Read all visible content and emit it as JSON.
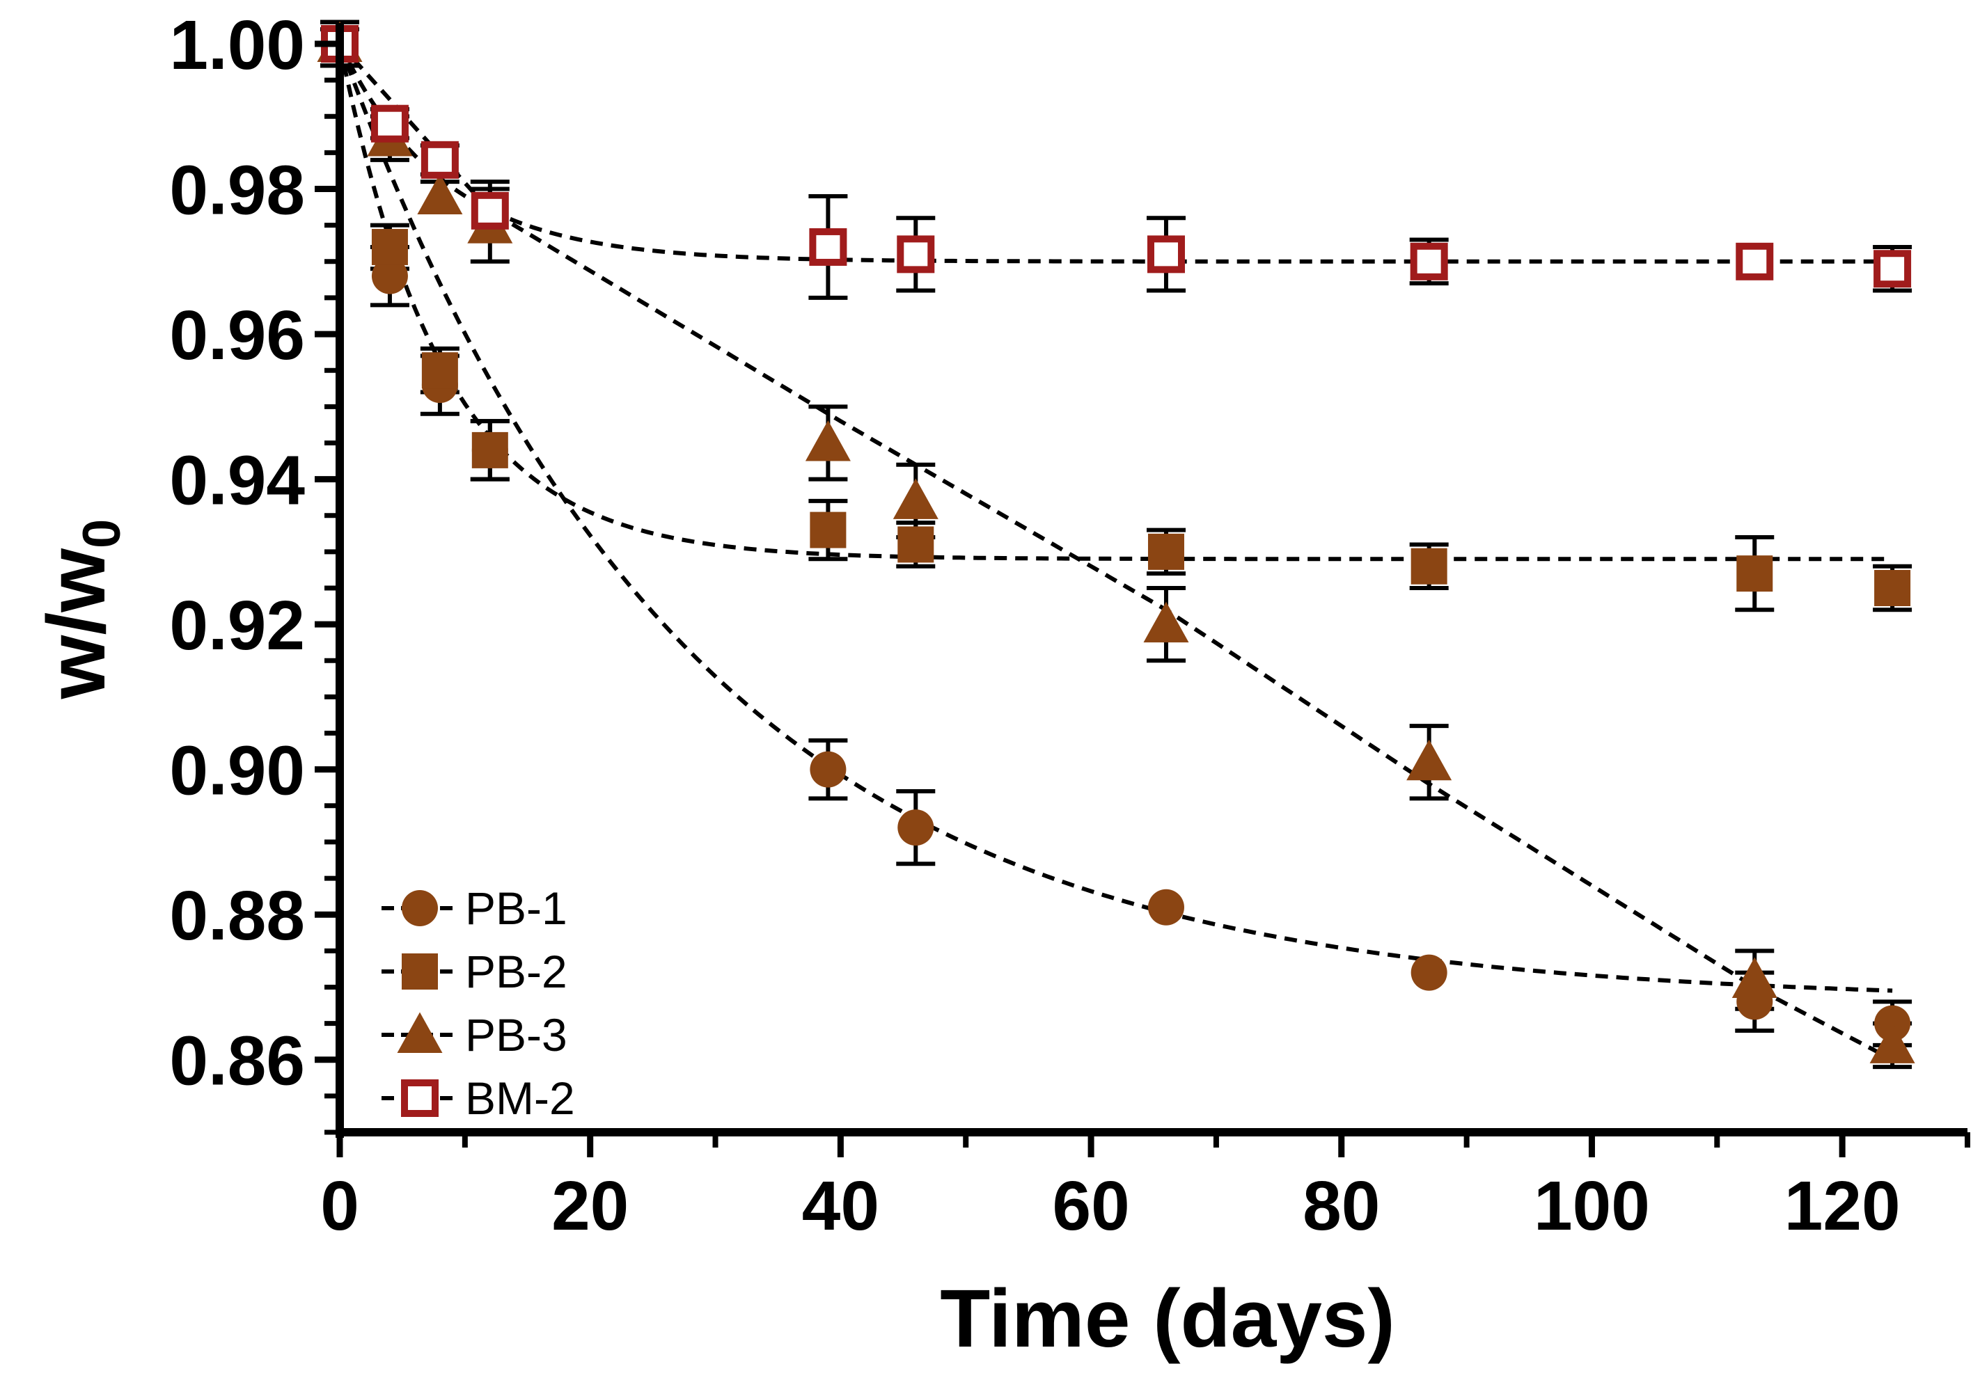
{
  "chart_data": {
    "type": "scatter",
    "xlabel": "Time (days)",
    "ylabel_main": "w/w",
    "ylabel_sub": "0",
    "xlim": [
      0,
      130
    ],
    "ylim": [
      0.85,
      1.0
    ],
    "xticks": [
      0,
      20,
      40,
      60,
      80,
      100,
      120
    ],
    "xtick_labels": [
      "0",
      "20",
      "40",
      "60",
      "80",
      "100",
      "120"
    ],
    "yticks": [
      0.86,
      0.88,
      0.9,
      0.92,
      0.94,
      0.96,
      0.98,
      1.0
    ],
    "ytick_labels": [
      "0.86",
      "0.88",
      "0.90",
      "0.92",
      "0.94",
      "0.96",
      "0.98",
      "1.00"
    ],
    "legend_position": "bottom-left",
    "fit_style": "dashed",
    "series": [
      {
        "name": "PB-1",
        "marker": "circle",
        "filled": true,
        "color": "#8B4513",
        "points": [
          {
            "x": 0,
            "y": 1.0,
            "err": 0.003
          },
          {
            "x": 4,
            "y": 0.968,
            "err": 0.004
          },
          {
            "x": 8,
            "y": 0.953,
            "err": 0.004
          },
          {
            "x": 12,
            "y": 0.944,
            "err": 0.004
          },
          {
            "x": 39,
            "y": 0.9,
            "err": 0.004
          },
          {
            "x": 46,
            "y": 0.892,
            "err": 0.005
          },
          {
            "x": 66,
            "y": 0.881,
            "err": 0
          },
          {
            "x": 87,
            "y": 0.872,
            "err": 0
          },
          {
            "x": 113,
            "y": 0.868,
            "err": 0.004
          },
          {
            "x": 124,
            "y": 0.865,
            "err": 0.003
          }
        ],
        "fit": {
          "model": "exponential",
          "a": 0.868,
          "b": 0.132,
          "k": 0.036
        }
      },
      {
        "name": "PB-2",
        "marker": "square",
        "filled": true,
        "color": "#8B4513",
        "points": [
          {
            "x": 0,
            "y": 1.0,
            "err": 0.003
          },
          {
            "x": 4,
            "y": 0.972,
            "err": 0.003
          },
          {
            "x": 8,
            "y": 0.955,
            "err": 0.003
          },
          {
            "x": 12,
            "y": 0.944,
            "err": 0.004
          },
          {
            "x": 39,
            "y": 0.933,
            "err": 0.004
          },
          {
            "x": 46,
            "y": 0.931,
            "err": 0.003
          },
          {
            "x": 66,
            "y": 0.93,
            "err": 0.003
          },
          {
            "x": 87,
            "y": 0.928,
            "err": 0.003
          },
          {
            "x": 113,
            "y": 0.927,
            "err": 0.005
          },
          {
            "x": 124,
            "y": 0.925,
            "err": 0.003
          }
        ],
        "fit": {
          "model": "exponential",
          "a": 0.929,
          "b": 0.071,
          "k": 0.12
        }
      },
      {
        "name": "PB-3",
        "marker": "triangle",
        "filled": true,
        "color": "#8B4513",
        "points": [
          {
            "x": 0,
            "y": 1.0,
            "err": 0.003
          },
          {
            "x": 4,
            "y": 0.987,
            "err": 0.003
          },
          {
            "x": 8,
            "y": 0.979,
            "err": 0.002
          },
          {
            "x": 12,
            "y": 0.975,
            "err": 0.005
          },
          {
            "x": 39,
            "y": 0.945,
            "err": 0.005
          },
          {
            "x": 46,
            "y": 0.937,
            "err": 0.005
          },
          {
            "x": 66,
            "y": 0.92,
            "err": 0.005
          },
          {
            "x": 87,
            "y": 0.901,
            "err": 0.005
          },
          {
            "x": 113,
            "y": 0.871,
            "err": 0.004
          },
          {
            "x": 124,
            "y": 0.862,
            "err": 0.003
          }
        ],
        "fit": {
          "model": "piecewise-linear",
          "x": [
            0,
            12,
            40,
            66,
            87,
            113,
            124
          ],
          "y": [
            1.0,
            0.977,
            0.948,
            0.922,
            0.898,
            0.87,
            0.86
          ]
        }
      },
      {
        "name": "BM-2",
        "marker": "square",
        "filled": false,
        "color": "#A01C1C",
        "points": [
          {
            "x": 0,
            "y": 1.0,
            "err": 0.002
          },
          {
            "x": 4,
            "y": 0.989,
            "err": 0.002
          },
          {
            "x": 8,
            "y": 0.984,
            "err": 0.002
          },
          {
            "x": 12,
            "y": 0.977,
            "err": 0.004
          },
          {
            "x": 39,
            "y": 0.972,
            "err": 0.007
          },
          {
            "x": 46,
            "y": 0.971,
            "err": 0.005
          },
          {
            "x": 66,
            "y": 0.971,
            "err": 0.005
          },
          {
            "x": 87,
            "y": 0.97,
            "err": 0.003
          },
          {
            "x": 113,
            "y": 0.97,
            "err": 0
          },
          {
            "x": 124,
            "y": 0.969,
            "err": 0.003
          }
        ],
        "fit": {
          "model": "exponential",
          "a": 0.97,
          "b": 0.03,
          "k": 0.12
        }
      }
    ]
  }
}
